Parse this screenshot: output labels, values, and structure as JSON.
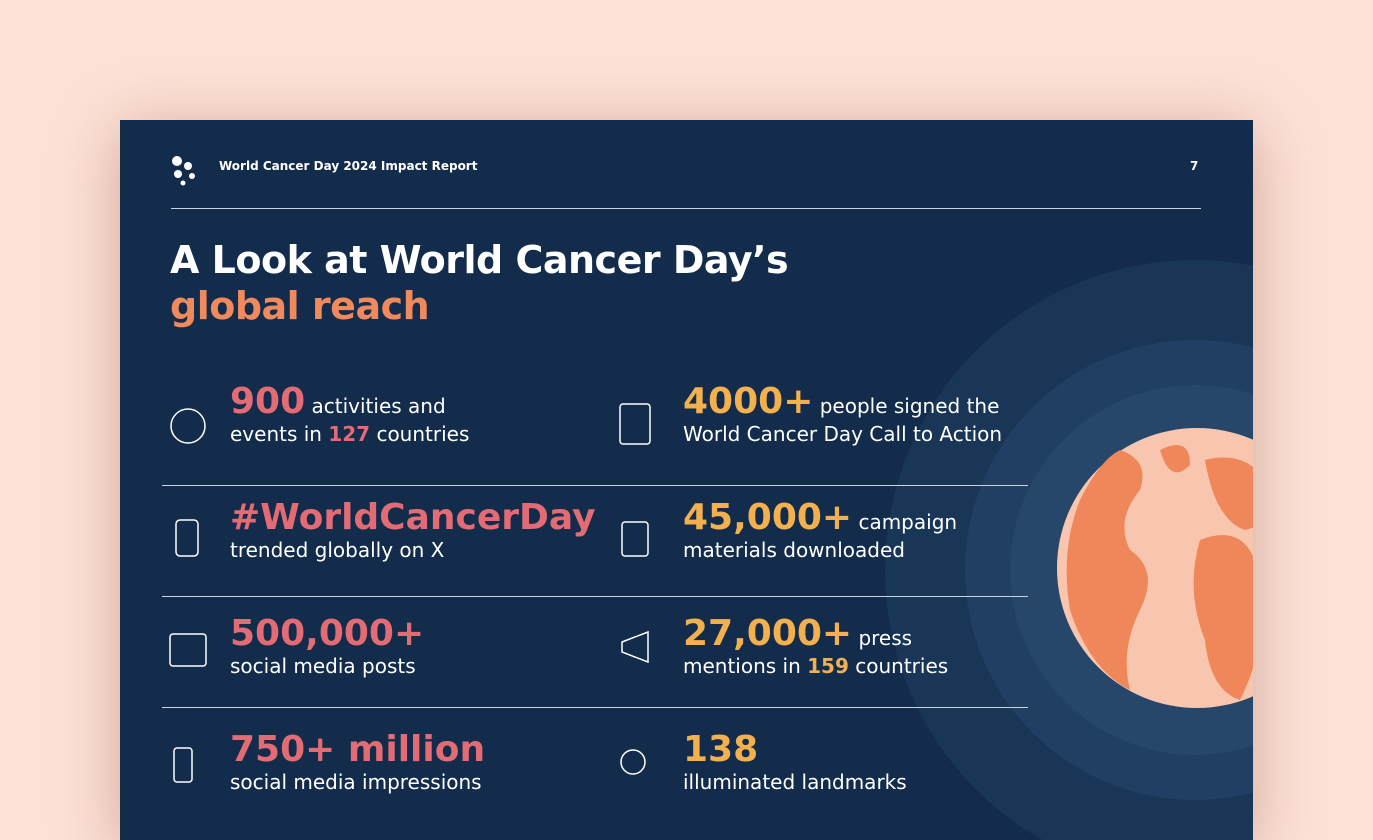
{
  "header": {
    "title": "World Cancer Day 2024 Impact Report",
    "page": "7"
  },
  "heading": {
    "line1": "A Look at World Cancer Day’s",
    "line2": "global reach"
  },
  "stats": {
    "left": {
      "accent": "#e36c74",
      "items": [
        {
          "lines": [
            [
              {
                "text": "900",
                "style": "figure"
              },
              {
                "text": " activities and"
              }
            ],
            [
              {
                "text": "events in "
              },
              {
                "text": "127",
                "style": "highlight"
              },
              {
                "text": " countries"
              }
            ]
          ]
        },
        {
          "lines": [
            [
              {
                "text": "#WorldCancerDay",
                "style": "figure"
              }
            ],
            [
              {
                "text": "trended globally on X"
              }
            ]
          ]
        },
        {
          "lines": [
            [
              {
                "text": "500,000+",
                "style": "figure"
              }
            ],
            [
              {
                "text": "social media posts"
              }
            ]
          ]
        },
        {
          "lines": [
            [
              {
                "text": "750+ million",
                "style": "figure"
              }
            ],
            [
              {
                "text": "social media impressions"
              }
            ]
          ]
        }
      ]
    },
    "right": {
      "accent": "#f2b04e",
      "items": [
        {
          "lines": [
            [
              {
                "text": "4000+",
                "style": "figure"
              },
              {
                "text": " people signed the"
              }
            ],
            [
              {
                "text": "World Cancer Day Call to Action"
              }
            ]
          ]
        },
        {
          "lines": [
            [
              {
                "text": "45,000+",
                "style": "figure"
              },
              {
                "text": " campaign"
              }
            ],
            [
              {
                "text": "materials downloaded"
              }
            ]
          ]
        },
        {
          "lines": [
            [
              {
                "text": "27,000+",
                "style": "figure"
              },
              {
                "text": " press"
              }
            ],
            [
              {
                "text": "mentions in "
              },
              {
                "text": "159",
                "style": "highlight"
              },
              {
                "text": " countries"
              }
            ]
          ]
        },
        {
          "lines": [
            [
              {
                "text": "138",
                "style": "figure"
              }
            ],
            [
              {
                "text": "illuminated landmarks"
              }
            ]
          ]
        }
      ]
    }
  }
}
